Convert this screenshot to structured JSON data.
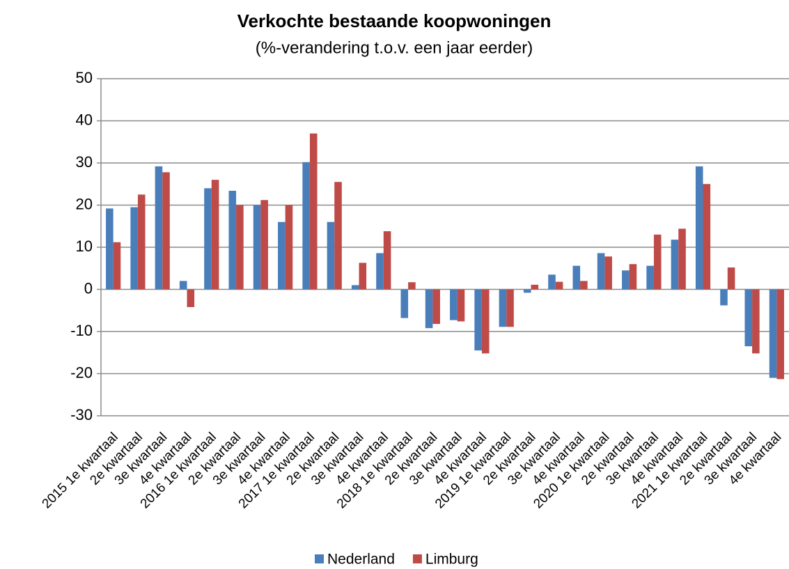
{
  "chart_data": {
    "type": "bar",
    "title": "Verkochte bestaande koopwoningen",
    "subtitle": "(%-verandering t.o.v. een jaar eerder)",
    "categories": [
      "2015 1e kwartaal",
      "2e kwartaal",
      "3e kwartaal",
      "4e kwartaal",
      "2016 1e kwartaal",
      "2e kwartaal",
      "3e kwartaal",
      "4e kwartaal",
      "2017 1e kwartaal",
      "2e kwartaal",
      "3e kwartaal",
      "4e kwartaal",
      "2018 1e kwartaal",
      "2e kwartaal",
      "3e kwartaal",
      "4e kwartaal",
      "2019 1e kwartaal",
      "2e kwartaal",
      "3e kwartaal",
      "4e kwartaal",
      "2020 1e kwartaal",
      "2e kwartaal",
      "3e kwartaal",
      "4e kwartaal",
      "2021 1e kwartaal",
      "2e kwartaal",
      "3e kwartaal",
      "4e kwartaal"
    ],
    "series": [
      {
        "name": "Nederland",
        "color": "#4a7ebb",
        "values": [
          19.2,
          19.5,
          29.2,
          2.0,
          24.0,
          23.4,
          20.0,
          16.0,
          30.2,
          16.0,
          1.0,
          8.6,
          -6.8,
          -9.2,
          -7.3,
          -14.5,
          -8.9,
          -0.8,
          3.5,
          5.6,
          8.6,
          4.5,
          5.6,
          11.8,
          29.2,
          -3.8,
          -13.5,
          -21.0
        ]
      },
      {
        "name": "Limburg",
        "color": "#be4b48",
        "values": [
          11.2,
          22.5,
          27.8,
          -4.2,
          26.0,
          20.0,
          21.2,
          20.0,
          37.0,
          25.5,
          6.3,
          13.8,
          1.7,
          -8.2,
          -7.6,
          -15.2,
          -8.9,
          1.1,
          1.8,
          2.0,
          7.8,
          6.0,
          13.0,
          14.4,
          25.0,
          5.2,
          -15.2,
          -21.3
        ]
      }
    ],
    "ylim": [
      -30,
      50
    ],
    "yticks": [
      -30,
      -20,
      -10,
      0,
      10,
      20,
      30,
      40,
      50
    ],
    "grid": true,
    "legend": "bottom"
  }
}
